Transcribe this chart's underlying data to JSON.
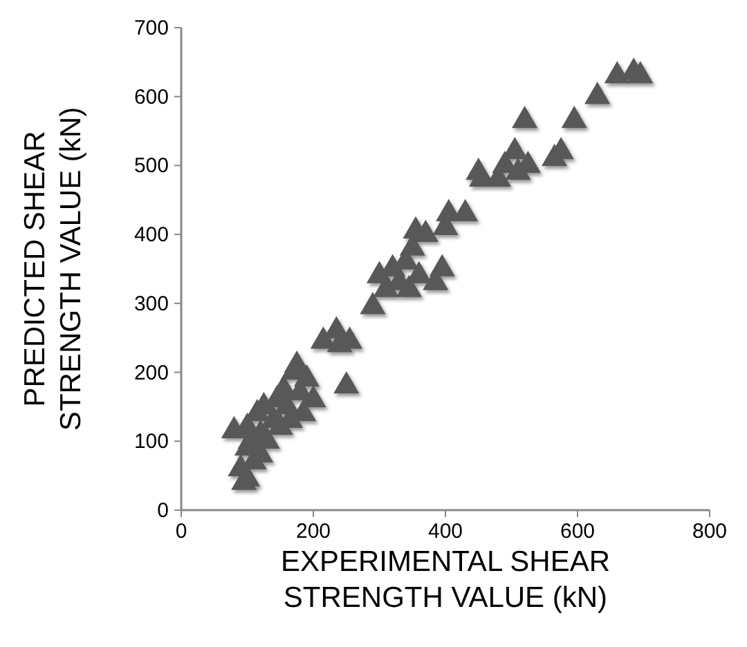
{
  "chart_data": {
    "type": "scatter",
    "xlabel": "EXPERIMENTAL SHEAR STRENGTH VALUE (kN)",
    "ylabel": "PREDICTED SHEAR STRENGTH VALUE (kN)",
    "xlim": [
      0,
      800
    ],
    "xticks": [
      0,
      200,
      400,
      600,
      800
    ],
    "ylim": [
      0,
      700
    ],
    "yticks": [
      0,
      100,
      200,
      300,
      400,
      500,
      600,
      700
    ],
    "grid": false,
    "marker": "triangle",
    "series": [
      {
        "color": "#595959",
        "x": [
          80,
          90,
          95,
          100,
          100,
          100,
          105,
          110,
          115,
          120,
          120,
          125,
          130,
          140,
          145,
          150,
          155,
          160,
          165,
          170,
          175,
          180,
          185,
          190,
          200,
          215,
          235,
          240,
          250,
          255,
          290,
          300,
          310,
          320,
          330,
          340,
          345,
          350,
          355,
          360,
          370,
          385,
          395,
          400,
          405,
          430,
          450,
          455,
          480,
          490,
          505,
          510,
          520,
          525,
          565,
          575,
          595,
          630,
          660,
          685,
          695
        ],
        "values": [
          115,
          60,
          40,
          45,
          90,
          120,
          100,
          70,
          140,
          110,
          80,
          150,
          100,
          130,
          160,
          120,
          175,
          150,
          130,
          200,
          210,
          170,
          140,
          190,
          160,
          245,
          260,
          240,
          180,
          245,
          295,
          340,
          320,
          350,
          330,
          360,
          320,
          380,
          405,
          340,
          400,
          330,
          350,
          410,
          430,
          430,
          490,
          480,
          480,
          500,
          520,
          490,
          565,
          500,
          510,
          520,
          565,
          600,
          630,
          635,
          630
        ]
      }
    ]
  }
}
